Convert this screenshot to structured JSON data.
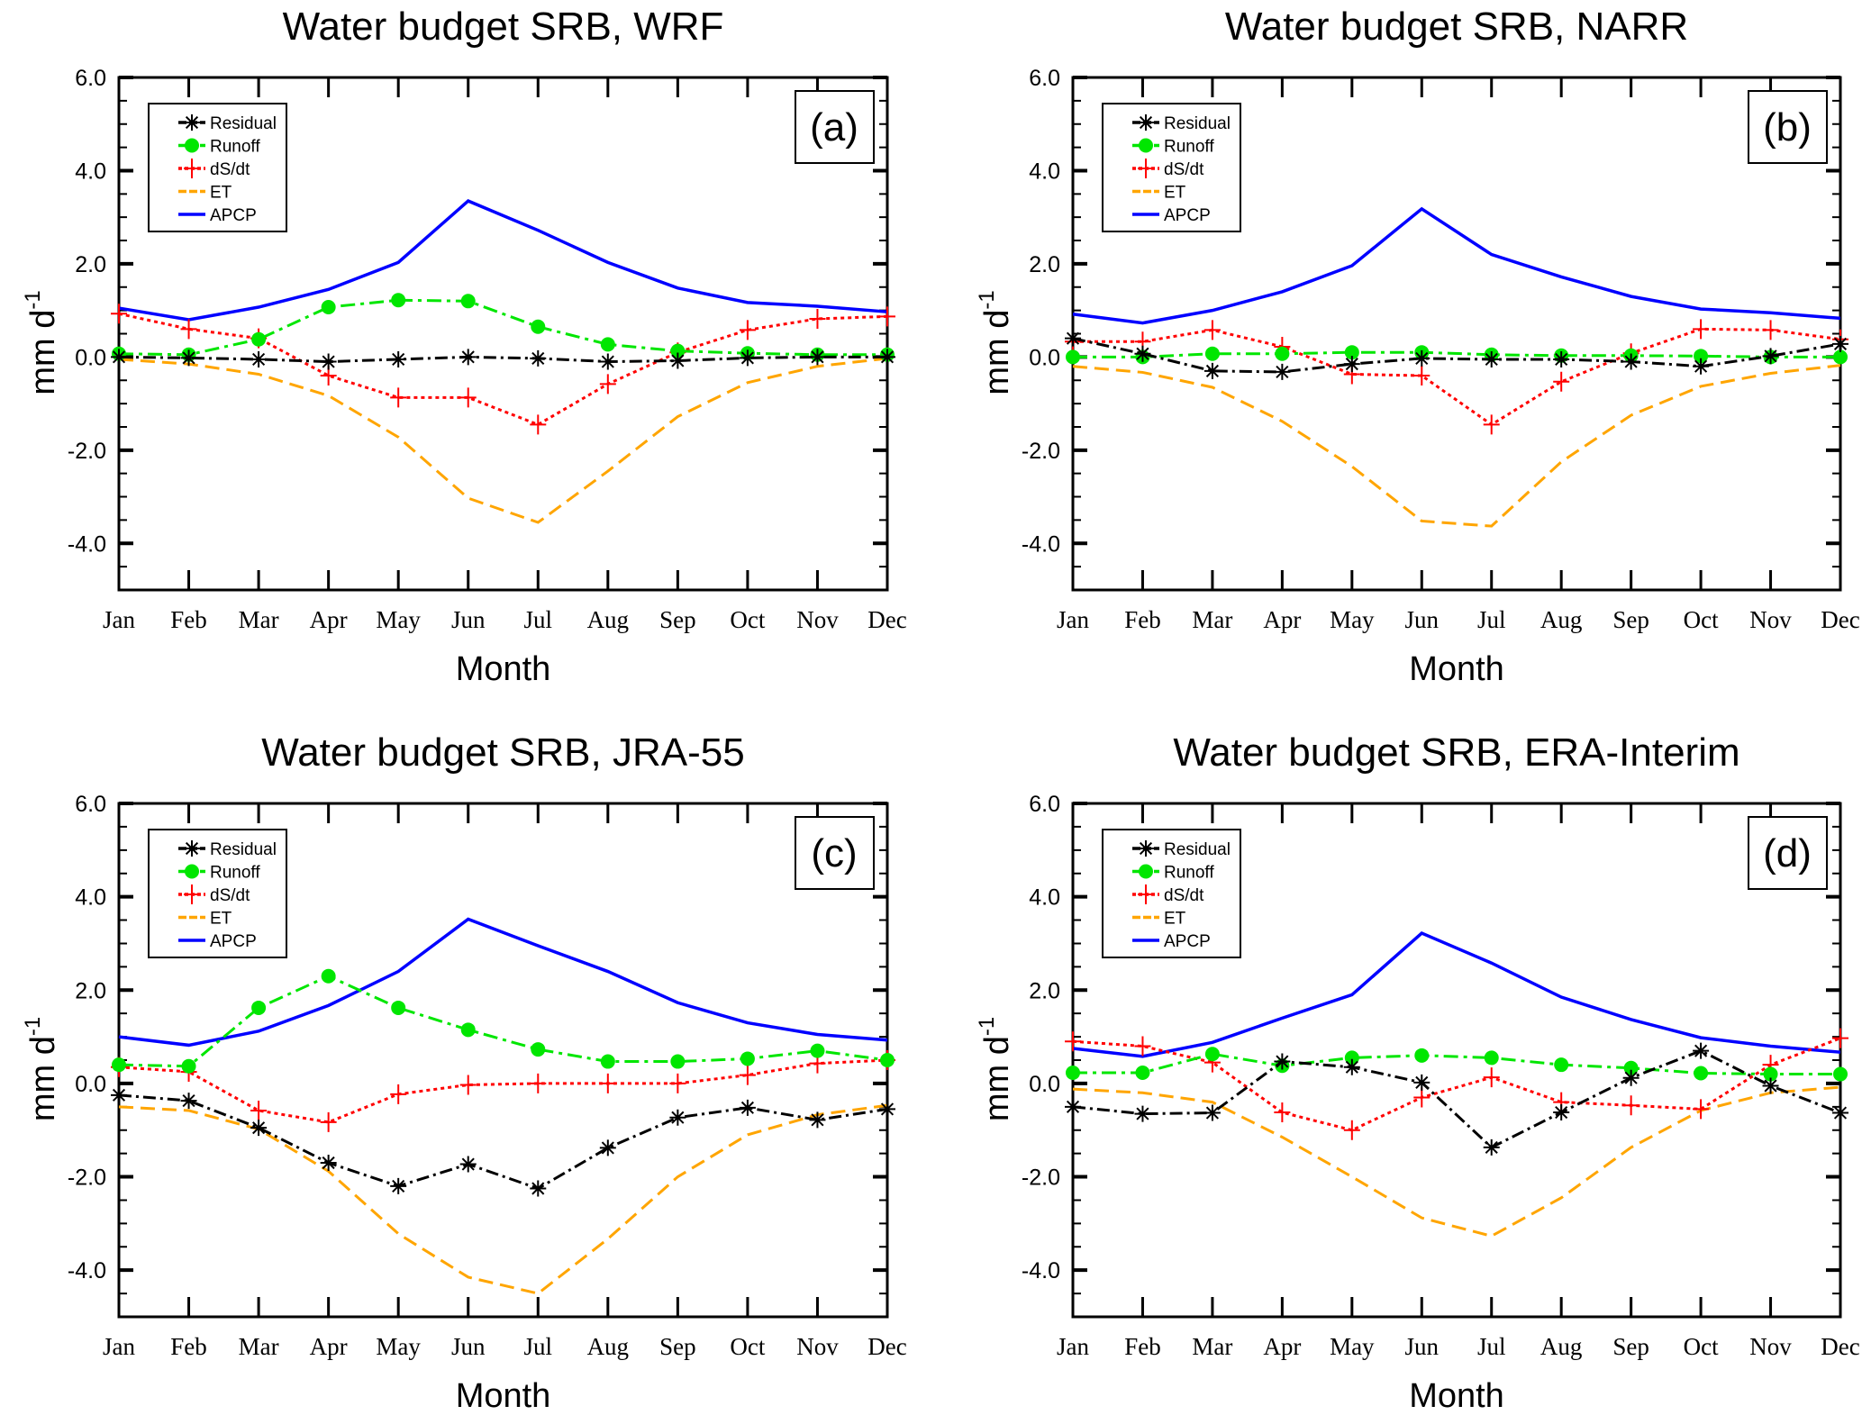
{
  "chart_data": [
    {
      "type": "line",
      "title": "Water budget SRB, WRF",
      "panel_label": "(a)",
      "xlabel": "Month",
      "ylabel": "mm d",
      "ylabel_superscript": "-1",
      "ylim": [
        -5,
        6
      ],
      "yticks": [
        "6.0",
        "4.0",
        "2.0",
        "0.0",
        "-2.0",
        "-4.0"
      ],
      "ytick_values": [
        6,
        4,
        2,
        0,
        -2,
        -4
      ],
      "grid": false,
      "legend_position": "top-left",
      "categories": [
        "Jan",
        "Feb",
        "Mar",
        "Apr",
        "May",
        "Jun",
        "Jul",
        "Aug",
        "Sep",
        "Oct",
        "Nov",
        "Dec"
      ],
      "series": [
        {
          "name": "Residual",
          "color": "#000000",
          "values": [
            0.0,
            -0.02,
            -0.05,
            -0.1,
            -0.05,
            0.0,
            -0.03,
            -0.1,
            -0.08,
            -0.02,
            0.0,
            0.0
          ]
        },
        {
          "name": "Runoff",
          "color": "#00e600",
          "values": [
            0.07,
            0.05,
            0.38,
            1.07,
            1.22,
            1.2,
            0.65,
            0.27,
            0.13,
            0.08,
            0.05,
            0.05
          ]
        },
        {
          "name": "dS/dt",
          "color": "#ff0000",
          "values": [
            0.93,
            0.6,
            0.4,
            -0.4,
            -0.87,
            -0.87,
            -1.45,
            -0.58,
            0.1,
            0.58,
            0.82,
            0.87
          ]
        },
        {
          "name": "ET",
          "color": "#ffa500",
          "values": [
            -0.05,
            -0.15,
            -0.37,
            -0.83,
            -1.72,
            -3.03,
            -3.55,
            -2.45,
            -1.28,
            -0.55,
            -0.2,
            -0.03
          ]
        },
        {
          "name": "APCP",
          "color": "#0000ff",
          "values": [
            1.05,
            0.8,
            1.07,
            1.45,
            2.03,
            3.35,
            2.72,
            2.03,
            1.48,
            1.17,
            1.09,
            0.97
          ]
        }
      ]
    },
    {
      "type": "line",
      "title": "Water budget SRB, NARR",
      "panel_label": "(b)",
      "xlabel": "Month",
      "ylabel": "mm d",
      "ylabel_superscript": "-1",
      "ylim": [
        -5,
        6
      ],
      "yticks": [
        "6.0",
        "4.0",
        "2.0",
        "0.0",
        "-2.0",
        "-4.0"
      ],
      "ytick_values": [
        6,
        4,
        2,
        0,
        -2,
        -4
      ],
      "grid": false,
      "legend_position": "top-left",
      "categories": [
        "Jan",
        "Feb",
        "Mar",
        "Apr",
        "May",
        "Jun",
        "Jul",
        "Aug",
        "Sep",
        "Oct",
        "Nov",
        "Dec"
      ],
      "series": [
        {
          "name": "Residual",
          "color": "#000000",
          "values": [
            0.4,
            0.07,
            -0.3,
            -0.32,
            -0.15,
            -0.03,
            -0.05,
            -0.05,
            -0.1,
            -0.2,
            0.02,
            0.28
          ]
        },
        {
          "name": "Runoff",
          "color": "#00e600",
          "values": [
            0.0,
            0.0,
            0.07,
            0.07,
            0.1,
            0.1,
            0.05,
            0.03,
            0.03,
            0.02,
            0.0,
            0.0
          ]
        },
        {
          "name": "dS/dt",
          "color": "#ff0000",
          "values": [
            0.33,
            0.33,
            0.58,
            0.22,
            -0.37,
            -0.4,
            -1.45,
            -0.53,
            0.08,
            0.6,
            0.58,
            0.38
          ]
        },
        {
          "name": "ET",
          "color": "#ffa500",
          "values": [
            -0.2,
            -0.33,
            -0.65,
            -1.38,
            -2.35,
            -3.52,
            -3.63,
            -2.25,
            -1.25,
            -0.63,
            -0.35,
            -0.18
          ]
        },
        {
          "name": "APCP",
          "color": "#0000ff",
          "values": [
            0.92,
            0.73,
            1.0,
            1.4,
            1.96,
            3.18,
            2.2,
            1.72,
            1.3,
            1.03,
            0.95,
            0.83
          ]
        }
      ]
    },
    {
      "type": "line",
      "title": "Water budget SRB, JRA-55",
      "panel_label": "(c)",
      "xlabel": "Month",
      "ylabel": "mm d",
      "ylabel_superscript": "-1",
      "ylim": [
        -5,
        6
      ],
      "yticks": [
        "6.0",
        "4.0",
        "2.0",
        "0.0",
        "-2.0",
        "-4.0"
      ],
      "ytick_values": [
        6,
        4,
        2,
        0,
        -2,
        -4
      ],
      "grid": false,
      "legend_position": "top-left",
      "categories": [
        "Jan",
        "Feb",
        "Mar",
        "Apr",
        "May",
        "Jun",
        "Jul",
        "Aug",
        "Sep",
        "Oct",
        "Nov",
        "Dec"
      ],
      "series": [
        {
          "name": "Residual",
          "color": "#000000",
          "values": [
            -0.25,
            -0.37,
            -0.95,
            -1.7,
            -2.2,
            -1.73,
            -2.25,
            -1.38,
            -0.73,
            -0.52,
            -0.78,
            -0.55
          ]
        },
        {
          "name": "Runoff",
          "color": "#00e600",
          "values": [
            0.4,
            0.37,
            1.62,
            2.3,
            1.62,
            1.15,
            0.73,
            0.47,
            0.47,
            0.53,
            0.7,
            0.5
          ]
        },
        {
          "name": "dS/dt",
          "color": "#ff0000",
          "values": [
            0.35,
            0.25,
            -0.58,
            -0.83,
            -0.23,
            -0.03,
            0.0,
            0.0,
            0.0,
            0.18,
            0.43,
            0.5
          ]
        },
        {
          "name": "ET",
          "color": "#ffa500",
          "values": [
            -0.5,
            -0.58,
            -0.98,
            -1.88,
            -3.22,
            -4.15,
            -4.5,
            -3.33,
            -2.0,
            -1.1,
            -0.67,
            -0.47
          ]
        },
        {
          "name": "APCP",
          "color": "#0000ff",
          "values": [
            1.0,
            0.82,
            1.12,
            1.67,
            2.4,
            3.52,
            2.95,
            2.4,
            1.73,
            1.3,
            1.05,
            0.93
          ]
        }
      ]
    },
    {
      "type": "line",
      "title": "Water budget SRB, ERA-Interim",
      "panel_label": "(d)",
      "xlabel": "Month",
      "ylabel": "mm d",
      "ylabel_superscript": "-1",
      "ylim": [
        -5,
        6
      ],
      "yticks": [
        "6.0",
        "4.0",
        "2.0",
        "0.0",
        "-2.0",
        "-4.0"
      ],
      "ytick_values": [
        6,
        4,
        2,
        0,
        -2,
        -4
      ],
      "grid": false,
      "legend_position": "top-left",
      "categories": [
        "Jan",
        "Feb",
        "Mar",
        "Apr",
        "May",
        "Jun",
        "Jul",
        "Aug",
        "Sep",
        "Oct",
        "Nov",
        "Dec"
      ],
      "series": [
        {
          "name": "Residual",
          "color": "#000000",
          "values": [
            -0.5,
            -0.65,
            -0.63,
            0.47,
            0.35,
            0.02,
            -1.37,
            -0.62,
            0.12,
            0.7,
            -0.05,
            -0.63
          ]
        },
        {
          "name": "Runoff",
          "color": "#00e600",
          "values": [
            0.23,
            0.23,
            0.63,
            0.38,
            0.55,
            0.6,
            0.55,
            0.4,
            0.33,
            0.22,
            0.2,
            0.2
          ]
        },
        {
          "name": "dS/dt",
          "color": "#ff0000",
          "values": [
            0.9,
            0.8,
            0.45,
            -0.62,
            -1.0,
            -0.3,
            0.13,
            -0.4,
            -0.47,
            -0.55,
            0.4,
            0.97
          ]
        },
        {
          "name": "ET",
          "color": "#ffa500",
          "values": [
            -0.12,
            -0.2,
            -0.4,
            -1.15,
            -2.0,
            -2.88,
            -3.27,
            -2.45,
            -1.37,
            -0.58,
            -0.2,
            -0.08
          ]
        },
        {
          "name": "APCP",
          "color": "#0000ff",
          "values": [
            0.75,
            0.58,
            0.88,
            1.4,
            1.9,
            3.22,
            2.58,
            1.85,
            1.37,
            0.98,
            0.8,
            0.67
          ]
        }
      ]
    }
  ]
}
